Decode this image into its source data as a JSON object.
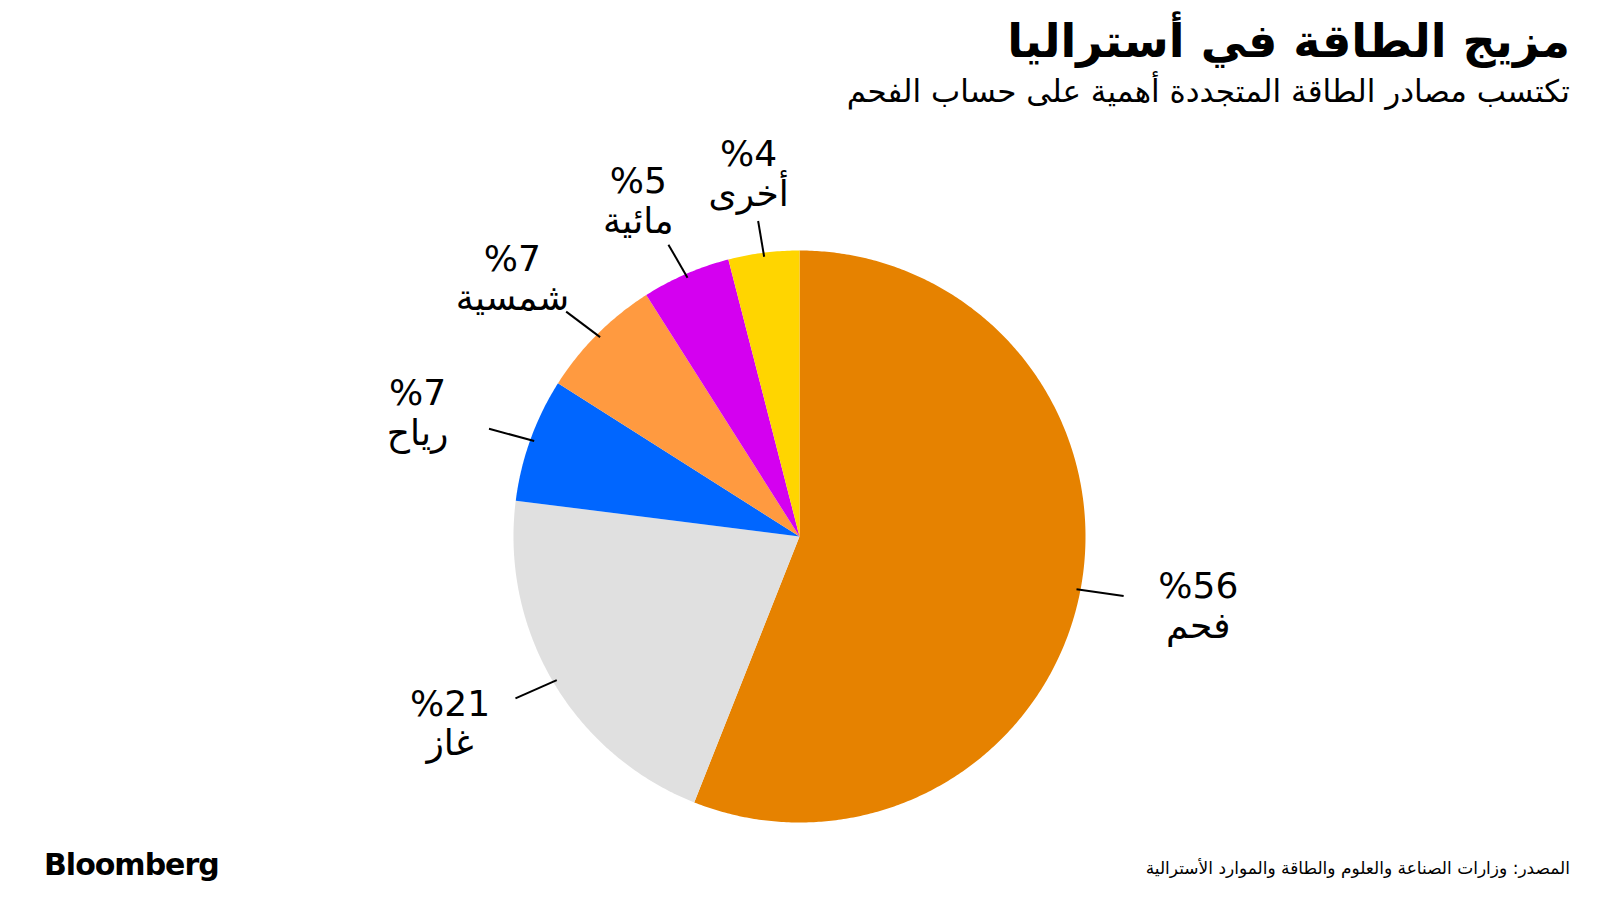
{
  "chart_data": {
    "type": "pie",
    "title": "مزيج الطاقة في أستراليا",
    "subtitle": "تكتسب مصادر الطاقة المتجددة أهمية على حساب الفحم",
    "categories": [
      "فحم",
      "غاز",
      "رياح",
      "شمسية",
      "مائية",
      "أخرى"
    ],
    "values": [
      56,
      21,
      7,
      7,
      5,
      4
    ],
    "value_labels": [
      "%56",
      "%21",
      "%7",
      "%7",
      "%5",
      "%4"
    ],
    "colors": [
      "#e68200",
      "#e0e0e0",
      "#0066ff",
      "#ff9a40",
      "#d400f0",
      "#ffd500"
    ],
    "data_labels": true,
    "source": "المصدر: وزارات الصناعة والعلوم والطاقة والموارد الأسترالية",
    "credit": "Bloomberg"
  }
}
